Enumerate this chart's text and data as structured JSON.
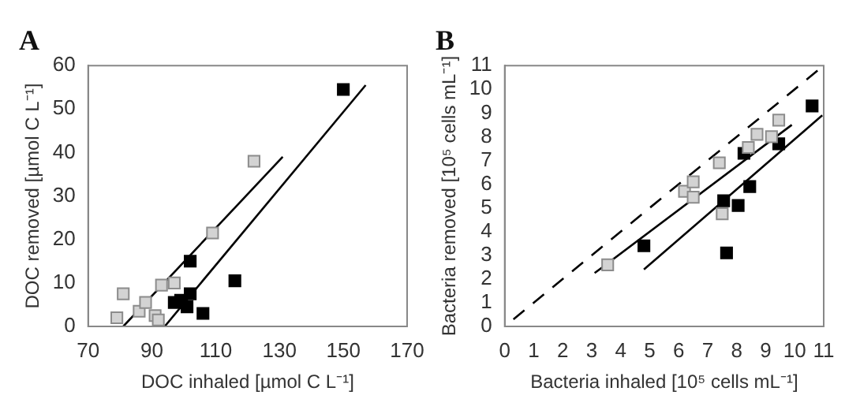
{
  "chart_data": [
    {
      "type": "scatter",
      "title": "A",
      "xlabel": "DOC inhaled [µmol C L⁻¹]",
      "ylabel": "DOC removed [µmol C L⁻¹]",
      "xlim": [
        70,
        170
      ],
      "xticks": [
        70,
        90,
        110,
        130,
        150,
        170
      ],
      "ylim": [
        0,
        60
      ],
      "yticks": [
        0,
        10,
        20,
        30,
        40,
        50,
        60
      ],
      "grid": false,
      "legend": false,
      "marker": "square",
      "series": [
        {
          "color": "#d3d3d3",
          "x": [
            79,
            81,
            86,
            88,
            91,
            92,
            93,
            97,
            109,
            122
          ],
          "values": [
            2,
            7.5,
            3.5,
            5.5,
            2.5,
            1.5,
            9.5,
            10,
            21.5,
            38
          ]
        },
        {
          "color": "#000000",
          "x": [
            97,
            99,
            101,
            102,
            102,
            106,
            116,
            150
          ],
          "values": [
            5.5,
            6,
            4.5,
            7.5,
            15,
            3,
            10.5,
            54.5
          ]
        },
        {
          "type": "line",
          "color": "#000000",
          "marker": "none",
          "line_style": "solid",
          "x": [
            81,
            131
          ],
          "values": [
            0,
            39
          ]
        },
        {
          "type": "line",
          "color": "#000000",
          "marker": "none",
          "line_style": "solid",
          "x": [
            94,
            157
          ],
          "values": [
            0,
            55.5
          ]
        }
      ]
    },
    {
      "type": "scatter",
      "title": "B",
      "xlabel": "Bacteria inhaled [10⁵ cells mL⁻¹]",
      "ylabel": "Bacteria removed [10⁵ cells mL⁻¹]",
      "xlim": [
        0,
        11
      ],
      "xticks": [
        0,
        1,
        2,
        3,
        4,
        5,
        6,
        7,
        8,
        9,
        10,
        11
      ],
      "ylim": [
        0,
        11
      ],
      "yticks": [
        0,
        1,
        2,
        3,
        4,
        5,
        6,
        7,
        8,
        9,
        10,
        11
      ],
      "grid": false,
      "legend": false,
      "marker": "square",
      "series": [
        {
          "color": "#d3d3d3",
          "x": [
            3.55,
            6.2,
            6.5,
            6.5,
            7.4,
            7.5,
            8.4,
            8.7,
            9.2,
            9.45
          ],
          "values": [
            2.6,
            5.7,
            6.1,
            5.45,
            6.9,
            4.75,
            7.55,
            8.1,
            8,
            8.7
          ]
        },
        {
          "color": "#000000",
          "x": [
            4.8,
            7.55,
            7.65,
            8.25,
            8.05,
            8.45,
            9.45,
            10.6
          ],
          "values": [
            3.4,
            5.3,
            3.1,
            7.3,
            5.1,
            5.9,
            7.7,
            9.3
          ]
        },
        {
          "type": "line",
          "color": "#000000",
          "marker": "none",
          "line_style": "dashed",
          "x": [
            0.3,
            11
          ],
          "values": [
            0.3,
            11
          ]
        },
        {
          "type": "line",
          "color": "#000000",
          "marker": "none",
          "line_style": "solid",
          "x": [
            3.1,
            9.9
          ],
          "values": [
            2.25,
            8.5
          ]
        },
        {
          "type": "line",
          "color": "#000000",
          "marker": "none",
          "line_style": "solid",
          "x": [
            4.8,
            10.95
          ],
          "values": [
            2.4,
            8.9
          ]
        }
      ]
    }
  ]
}
